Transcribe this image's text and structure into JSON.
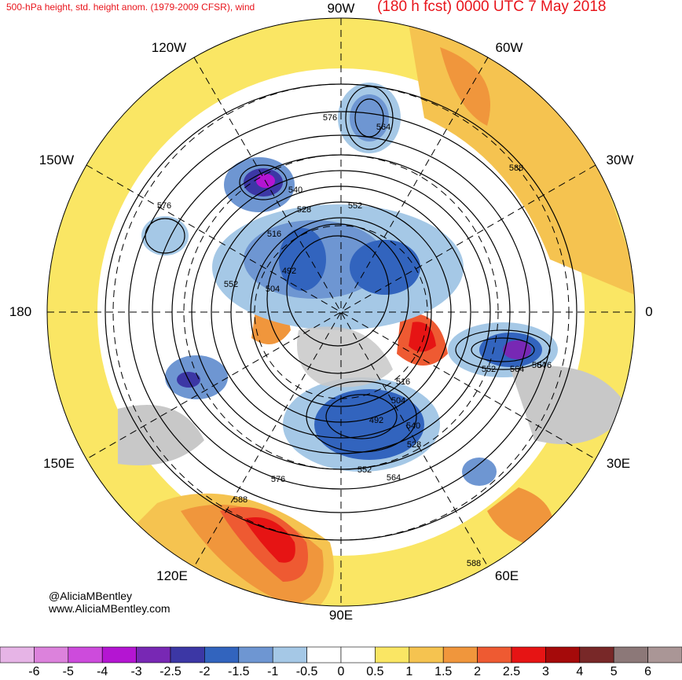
{
  "header": {
    "title_left": "500-hPa height, std. height anom. (1979-2009 CFSR), wind",
    "title_right": "(180 h fcst) 0000 UTC 7 May 2018"
  },
  "longitude_labels": {
    "top": "90W",
    "top_left": "120W",
    "top_right": "60W",
    "upper_left": "150W",
    "upper_right": "30W",
    "left": "180",
    "right": "0",
    "lower_left": "150E",
    "lower_right": "30E",
    "bottom_left": "120E",
    "bottom_right": "60E",
    "bottom": "90E"
  },
  "contour_labels": [
    "576",
    "564",
    "540",
    "528",
    "552",
    "516",
    "492",
    "504",
    "552",
    "576",
    "564",
    "588",
    "552",
    "564",
    "576",
    "516",
    "504",
    "540",
    "492",
    "528",
    "552",
    "564",
    "576",
    "588",
    "588"
  ],
  "credits": {
    "handle": "@AliciaMBentley",
    "website": "www.AliciaMBentley.com"
  },
  "colorbar": {
    "ticks": [
      "-6",
      "-5",
      "-4",
      "-3",
      "-2.5",
      "-2",
      "-1.5",
      "-1",
      "-0.5",
      "0",
      "0.5",
      "1",
      "1.5",
      "2",
      "2.5",
      "3",
      "4",
      "5",
      "6"
    ],
    "colors": [
      "#e6b4e6",
      "#dc82dc",
      "#cd4bdc",
      "#b415d2",
      "#7828b4",
      "#3c37a5",
      "#3264be",
      "#6e96d2",
      "#a5c8e6",
      "#ffffff",
      "#ffffff",
      "#fae664",
      "#f5c350",
      "#f0963c",
      "#ee5a32",
      "#e61414",
      "#a50a0a",
      "#782828",
      "#8c7878",
      "#aa9696"
    ]
  },
  "colors": {
    "title": "#e8141b",
    "land_gray": "#c8c8c8"
  }
}
